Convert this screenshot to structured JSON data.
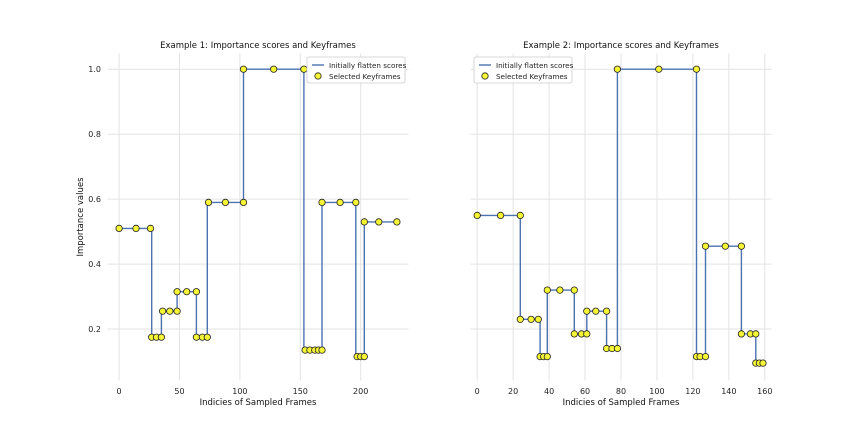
{
  "figure": {
    "ylabel": "Importance values"
  },
  "chart_data": [
    {
      "type": "line",
      "title": "Example 1: Importance scores and Keyframes",
      "xlabel": "Indicies of Sampled Frames",
      "ylabel": "Importance values",
      "xlim": [
        -10,
        240
      ],
      "ylim": [
        0.04,
        1.05
      ],
      "xticks": [
        0,
        50,
        100,
        150,
        200
      ],
      "yticks": [
        0.2,
        0.4,
        0.6,
        0.8,
        1.0
      ],
      "ytick_labels": [
        "0.2",
        "0.4",
        "0.6",
        "0.8",
        "1.0"
      ],
      "grid": true,
      "legend_position": "top-right",
      "series": [
        {
          "name": "Initially flatten scores",
          "kind": "step-line",
          "color": "#4c72b0",
          "segments": [
            [
              0,
              0.51
            ],
            [
              27,
              0.51
            ],
            [
              27,
              0.175
            ],
            [
              35,
              0.175
            ],
            [
              35,
              0.255
            ],
            [
              48,
              0.255
            ],
            [
              48,
              0.315
            ],
            [
              64,
              0.315
            ],
            [
              64,
              0.175
            ],
            [
              73,
              0.175
            ],
            [
              73,
              0.59
            ],
            [
              103,
              0.59
            ],
            [
              103,
              1.0
            ],
            [
              153,
              1.0
            ],
            [
              153,
              0.135
            ],
            [
              168,
              0.135
            ],
            [
              168,
              0.59
            ],
            [
              196,
              0.59
            ],
            [
              196,
              0.115
            ],
            [
              203,
              0.115
            ],
            [
              203,
              0.53
            ],
            [
              230,
              0.53
            ]
          ]
        },
        {
          "name": "Selected Keyframes",
          "kind": "markers",
          "color": "#f5f536",
          "edge_color": "#222222",
          "x": [
            0,
            14,
            26,
            27,
            31,
            35,
            36,
            42,
            48,
            48,
            56,
            64,
            64,
            69,
            73,
            74,
            88,
            103,
            103,
            128,
            153,
            154,
            158,
            162,
            165,
            168,
            168,
            183,
            196,
            197,
            200,
            203,
            203,
            215,
            230
          ],
          "y": [
            0.51,
            0.51,
            0.51,
            0.175,
            0.175,
            0.175,
            0.255,
            0.255,
            0.255,
            0.315,
            0.315,
            0.315,
            0.175,
            0.175,
            0.175,
            0.59,
            0.59,
            0.59,
            1.0,
            1.0,
            1.0,
            0.135,
            0.135,
            0.135,
            0.135,
            0.135,
            0.59,
            0.59,
            0.59,
            0.115,
            0.115,
            0.115,
            0.53,
            0.53,
            0.53
          ]
        }
      ]
    },
    {
      "type": "line",
      "title": "Example 2: Importance scores and Keyframes",
      "xlabel": "Indicies of Sampled Frames",
      "ylabel": "",
      "xlim": [
        -4,
        164
      ],
      "ylim": [
        0.04,
        1.05
      ],
      "xticks": [
        0,
        20,
        40,
        60,
        80,
        100,
        120,
        140,
        160
      ],
      "yticks": [],
      "grid": true,
      "legend_position": "top-left",
      "series": [
        {
          "name": "Initially flatten scores",
          "kind": "step-line",
          "color": "#4c72b0",
          "segments": [
            [
              0,
              0.55
            ],
            [
              24,
              0.55
            ],
            [
              24,
              0.23
            ],
            [
              35,
              0.23
            ],
            [
              35,
              0.115
            ],
            [
              39,
              0.115
            ],
            [
              39,
              0.32
            ],
            [
              54,
              0.32
            ],
            [
              54,
              0.185
            ],
            [
              61,
              0.185
            ],
            [
              61,
              0.255
            ],
            [
              72,
              0.255
            ],
            [
              72,
              0.14
            ],
            [
              78,
              0.14
            ],
            [
              78,
              1.0
            ],
            [
              122,
              1.0
            ],
            [
              122,
              0.115
            ],
            [
              127,
              0.115
            ],
            [
              127,
              0.455
            ],
            [
              147,
              0.455
            ],
            [
              147,
              0.185
            ],
            [
              155,
              0.185
            ],
            [
              155,
              0.095
            ],
            [
              159,
              0.095
            ]
          ]
        },
        {
          "name": "Selected Keyframes",
          "kind": "markers",
          "color": "#f5f536",
          "edge_color": "#222222",
          "x": [
            0,
            13,
            24,
            24,
            30,
            34,
            35,
            37,
            39,
            39,
            46,
            54,
            54,
            58,
            61,
            61,
            66,
            72,
            72,
            75,
            78,
            78,
            101,
            122,
            122,
            124,
            127,
            127,
            138,
            147,
            147,
            152,
            155,
            155,
            157,
            159
          ],
          "y": [
            0.55,
            0.55,
            0.55,
            0.23,
            0.23,
            0.23,
            0.115,
            0.115,
            0.115,
            0.32,
            0.32,
            0.32,
            0.185,
            0.185,
            0.185,
            0.255,
            0.255,
            0.255,
            0.14,
            0.14,
            0.14,
            1.0,
            1.0,
            1.0,
            0.115,
            0.115,
            0.115,
            0.455,
            0.455,
            0.455,
            0.185,
            0.185,
            0.185,
            0.095,
            0.095,
            0.095
          ]
        }
      ]
    }
  ]
}
